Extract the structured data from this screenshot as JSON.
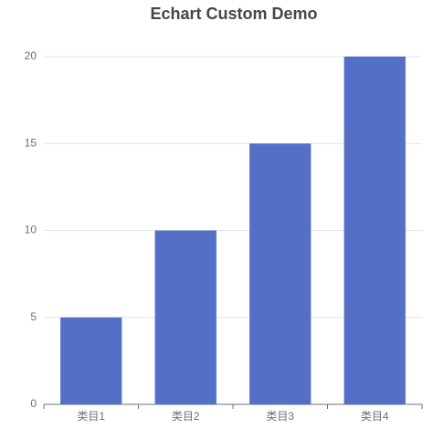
{
  "chart_data": {
    "type": "bar",
    "title": "Echart Custom Demo",
    "categories": [
      "类目1",
      "类目2",
      "类目3",
      "类目4"
    ],
    "values": [
      5,
      10,
      15,
      20
    ],
    "color": "#5470c6",
    "ylim": [
      0,
      20
    ],
    "yticks": [
      0,
      5,
      10,
      15,
      20
    ],
    "grid": true
  }
}
